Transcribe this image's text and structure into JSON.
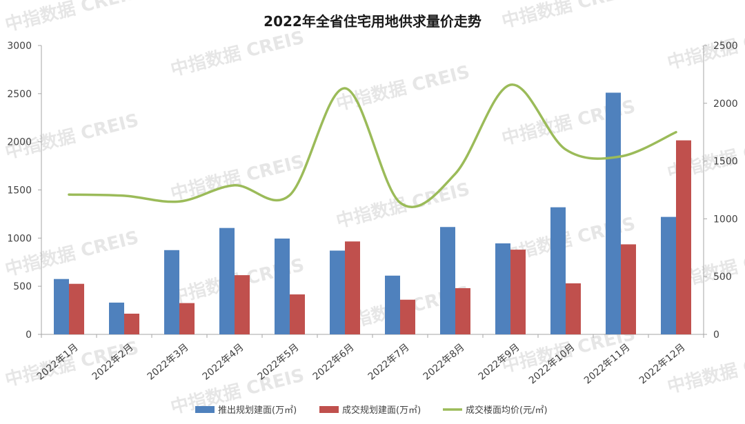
{
  "watermark": "中指数据 CREIS",
  "chart_data": {
    "type": "bar",
    "title": "2022年全省住宅用地供求量价走势",
    "categories": [
      "2022年1月",
      "2022年2月",
      "2022年3月",
      "2022年4月",
      "2022年5月",
      "2022年6月",
      "2022年7月",
      "2022年8月",
      "2022年9月",
      "2022年10月",
      "2022年11月",
      "2022年12月"
    ],
    "ylim_left": [
      0,
      3000
    ],
    "yticks_left": [
      0,
      500,
      1000,
      1500,
      2000,
      2500,
      3000
    ],
    "ylim_right": [
      0,
      2500
    ],
    "yticks_right": [
      0,
      500,
      1000,
      1500,
      2000,
      2500
    ],
    "legend_position": "bottom",
    "series": [
      {
        "name": "推出规划建面(万㎡)",
        "type": "bar",
        "axis": "left",
        "color": "#4f81bd",
        "values": [
          575,
          330,
          875,
          1105,
          995,
          870,
          610,
          1115,
          945,
          1320,
          2510,
          1220
        ]
      },
      {
        "name": "成交规划建面(万㎡)",
        "type": "bar",
        "axis": "left",
        "color": "#c0504d",
        "values": [
          525,
          215,
          325,
          615,
          415,
          965,
          360,
          480,
          880,
          530,
          935,
          2015
        ]
      },
      {
        "name": "成交楼面均价(元/㎡)",
        "type": "line",
        "axis": "right",
        "color": "#9bbb59",
        "values": [
          1210,
          1200,
          1150,
          1290,
          1205,
          2130,
          1140,
          1390,
          2160,
          1600,
          1540,
          1750
        ]
      }
    ]
  }
}
